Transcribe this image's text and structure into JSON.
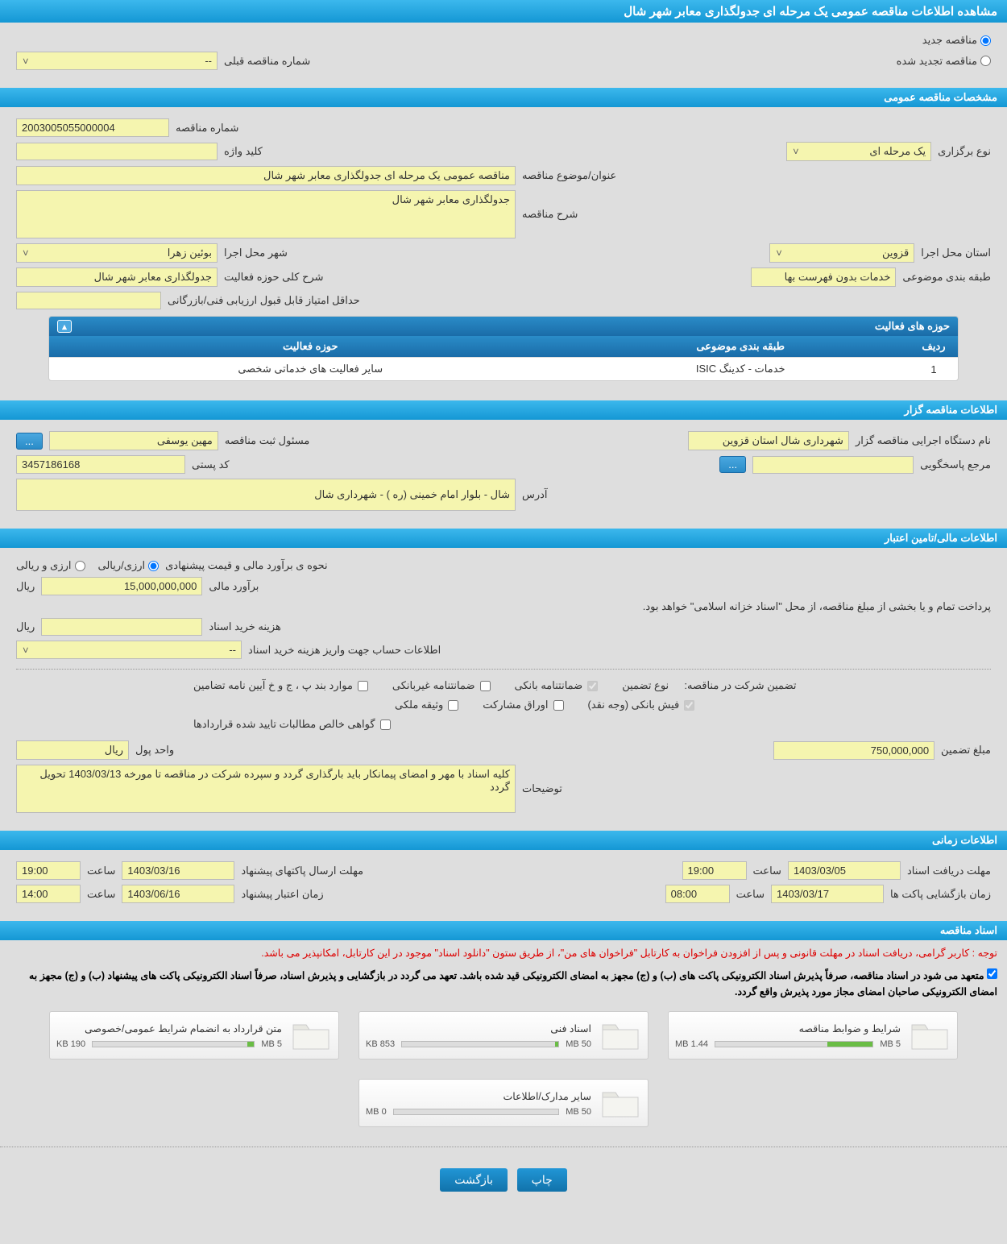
{
  "page_title": "مشاهده اطلاعات مناقصه عمومی یک مرحله ای جدولگذاری معابر شهر شال",
  "top": {
    "radio_new": "مناقصه جدید",
    "radio_renew": "مناقصه تجدید شده",
    "prev_number_label": "شماره مناقصه قبلی",
    "prev_number_value": "--"
  },
  "sections": {
    "general": "مشخصات مناقصه عمومی",
    "holder": "اطلاعات مناقصه گزار",
    "financial": "اطلاعات مالی/تامین اعتبار",
    "time": "اطلاعات زمانی",
    "docs": "اسناد مناقصه"
  },
  "general": {
    "number_label": "شماره مناقصه",
    "number": "2003005055000004",
    "type_label": "نوع برگزاری",
    "type": "یک مرحله ای",
    "keyword_label": "کلید واژه",
    "keyword": "",
    "subject_label": "عنوان/موضوع مناقصه",
    "subject": "مناقصه عمومی یک مرحله ای جدولگذاری معابر شهر شال",
    "desc_label": "شرح مناقصه",
    "desc": "جدولگذاری معابر شهر شال",
    "province_label": "استان محل اجرا",
    "province": "قزوین",
    "city_label": "شهر محل اجرا",
    "city": "بوئین زهرا",
    "category_label": "طبقه بندی موضوعی",
    "category": "خدمات بدون فهرست بها",
    "scope_desc_label": "شرح کلی حوزه فعالیت",
    "scope_desc": "جدولگذاری معابر شهر شال",
    "min_score_label": "حداقل امتیاز قابل قبول ارزیابی فنی/بازرگانی",
    "min_score": "",
    "activity_title": "حوزه های فعالیت",
    "table": {
      "columns": [
        "ردیف",
        "طبقه بندی موضوعی",
        "حوزه فعالیت"
      ],
      "rows": [
        [
          "1",
          "خدمات - کدینگ ISIC",
          "سایر فعالیت های خدماتی شخصی"
        ]
      ]
    }
  },
  "holder": {
    "org_label": "نام دستگاه اجرایی مناقصه گزار",
    "org": "شهرداری شال استان قزوین",
    "registrant_label": "مسئول ثبت مناقصه",
    "registrant": "مهین یوسفی",
    "contact_label": "مرجع پاسخگویی",
    "contact": "",
    "postal_label": "کد پستی",
    "postal": "3457186168",
    "address_label": "آدرس",
    "address": "شال - بلوار امام خمینی (ره ) - شهرداری شال"
  },
  "financial": {
    "method_label": "نحوه ی برآورد مالی و قیمت پیشنهادی",
    "opt_arzi_riali": "ارزی/ریالی",
    "opt_arzi_o_riali": "ارزی و ریالی",
    "estimate_label": "برآورد مالی",
    "estimate": "15,000,000,000",
    "rial": "ریال",
    "payment_note": "پرداخت تمام و یا بخشی از مبلغ مناقصه، از محل \"اسناد خزانه اسلامی\" خواهد بود.",
    "doc_cost_label": "هزینه خرید اسناد",
    "doc_cost": "",
    "account_label": "اطلاعات حساب جهت واریز هزینه خرید اسناد",
    "account": "--",
    "guarantee_label": "تضمین شرکت در مناقصه:",
    "guarantee_type_label": "نوع تضمین",
    "chk1": "ضمانتنامه بانکی",
    "chk2": "ضمانتنامه غیربانکی",
    "chk3": "موارد بند پ ، ج و خ آیین نامه تضامین",
    "chk4": "فیش بانکی (وجه نقد)",
    "chk5": "اوراق مشارکت",
    "chk6": "وثیقه ملکی",
    "chk7": "گواهی خالص مطالبات تایید شده قراردادها",
    "guarantee_amount_label": "مبلغ تضمین",
    "guarantee_amount": "750,000,000",
    "unit_label": "واحد پول",
    "unit": "ریال",
    "notes_label": "توضیحات",
    "notes": "کلیه اسناد با مهر و امضای پیمانکار باید بارگذاری گردد و سپرده شرکت در مناقصه تا مورخه 1403/03/13 تحویل گردد"
  },
  "time": {
    "doc_deadline_label": "مهلت دریافت اسناد",
    "doc_deadline_date": "1403/03/05",
    "doc_deadline_time_label": "ساعت",
    "doc_deadline_time": "19:00",
    "packet_deadline_label": "مهلت ارسال پاکتهای پیشنهاد",
    "packet_deadline_date": "1403/03/16",
    "packet_deadline_time": "19:00",
    "open_label": "زمان بازگشایی پاکت ها",
    "open_date": "1403/03/17",
    "open_time": "08:00",
    "validity_label": "زمان اعتبار پیشنهاد",
    "validity_date": "1403/06/16",
    "validity_time": "14:00"
  },
  "docs": {
    "warning": "توجه : کاربر گرامی، دریافت اسناد در مهلت قانونی و پس از افزودن فراخوان به کارتابل \"فراخوان های من\"، از طریق ستون \"دانلود اسناد\" موجود در این کارتابل، امکانپذیر می باشد.",
    "notice": "متعهد می شود در اسناد مناقصه، صرفاً پذیرش اسناد الکترونیکی پاکت های (ب) و (ج) مجهز به امضای الکترونیکی قید شده باشد. تعهد می گردد در بازگشایی و پذیرش اسناد، صرفاً اسناد الکترونیکی پاکت های پیشنهاد (ب) و (ج) مجهز به امضای الکترونیکی صاحبان امضای مجاز مورد پذیرش واقع گردد.",
    "items": [
      {
        "title": "شرایط و ضوابط مناقصه",
        "used": "1.44 MB",
        "total": "5 MB",
        "pct": 29
      },
      {
        "title": "اسناد فنی",
        "used": "853 KB",
        "total": "50 MB",
        "pct": 2
      },
      {
        "title": "متن قرارداد به انضمام شرایط عمومی/خصوصی",
        "used": "190 KB",
        "total": "5 MB",
        "pct": 4
      },
      {
        "title": "سایر مدارک/اطلاعات",
        "used": "0 MB",
        "total": "50 MB",
        "pct": 0
      }
    ]
  },
  "buttons": {
    "print": "چاپ",
    "back": "بازگشت",
    "dots": "..."
  }
}
